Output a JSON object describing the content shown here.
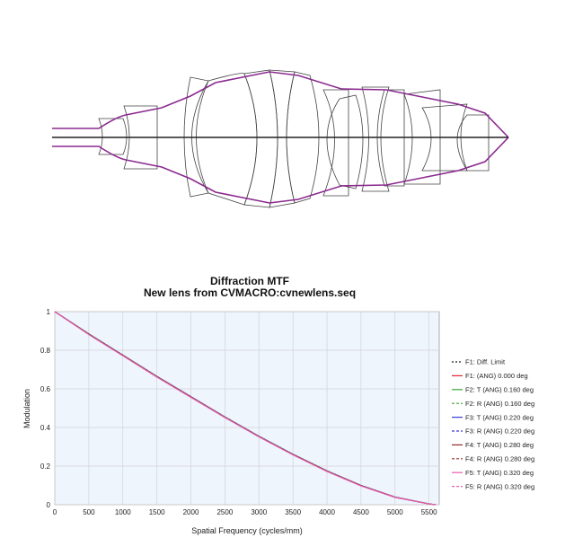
{
  "lens_diagram": {
    "element_stroke": "#444444",
    "ray_color": "#8b2a8f",
    "axis_color": "#222222"
  },
  "chart_data": {
    "type": "line",
    "title": "Diffraction MTF",
    "subtitle": "New lens from CVMACRO:cvnewlens.seq",
    "xlabel": "Spatial Frequency (cycles/mm)",
    "ylabel": "Modulation",
    "xlim": [
      0,
      5650
    ],
    "ylim": [
      0,
      1
    ],
    "xticks": [
      0,
      500,
      1000,
      1500,
      2000,
      2500,
      3000,
      3500,
      4000,
      4500,
      5000,
      5500
    ],
    "yticks": [
      0,
      0.2,
      0.4,
      0.6,
      0.8,
      1
    ],
    "grid": true,
    "legend_position": "right",
    "plot_background": "#eef5fd",
    "x": [
      0,
      500,
      1000,
      1500,
      2000,
      2500,
      3000,
      3500,
      4000,
      4500,
      5000,
      5500,
      5600
    ],
    "series": [
      {
        "name": "F1: Diff. Limit",
        "color": "#222222",
        "dash": "2,2",
        "values": [
          1.0,
          0.885,
          0.775,
          0.665,
          0.56,
          0.455,
          0.355,
          0.262,
          0.176,
          0.1,
          0.04,
          0.004,
          0.0
        ]
      },
      {
        "name": "F1: (ANG) 0.000 deg",
        "color": "#e0262d",
        "dash": "",
        "values": [
          1.0,
          0.885,
          0.775,
          0.665,
          0.56,
          0.455,
          0.355,
          0.262,
          0.176,
          0.1,
          0.04,
          0.004,
          0.0
        ]
      },
      {
        "name": "F2: T (ANG) 0.160 deg",
        "color": "#3aa63a",
        "dash": "",
        "values": [
          1.0,
          0.884,
          0.774,
          0.664,
          0.559,
          0.454,
          0.354,
          0.261,
          0.175,
          0.099,
          0.039,
          0.004,
          0.0
        ]
      },
      {
        "name": "F2: R (ANG) 0.160 deg",
        "color": "#3aa63a",
        "dash": "3,2",
        "values": [
          1.0,
          0.884,
          0.774,
          0.664,
          0.559,
          0.454,
          0.354,
          0.261,
          0.175,
          0.099,
          0.039,
          0.004,
          0.0
        ]
      },
      {
        "name": "F3: T (ANG) 0.220 deg",
        "color": "#3b3bd6",
        "dash": "",
        "values": [
          1.0,
          0.883,
          0.773,
          0.663,
          0.558,
          0.453,
          0.353,
          0.26,
          0.174,
          0.099,
          0.039,
          0.004,
          0.0
        ]
      },
      {
        "name": "F3: R (ANG) 0.220 deg",
        "color": "#3b3bd6",
        "dash": "3,2",
        "values": [
          1.0,
          0.883,
          0.773,
          0.663,
          0.558,
          0.453,
          0.353,
          0.26,
          0.174,
          0.099,
          0.039,
          0.004,
          0.0
        ]
      },
      {
        "name": "F4: T (ANG) 0.280 deg",
        "color": "#8b2d2d",
        "dash": "",
        "values": [
          1.0,
          0.882,
          0.772,
          0.662,
          0.557,
          0.452,
          0.352,
          0.259,
          0.173,
          0.098,
          0.038,
          0.004,
          0.0
        ]
      },
      {
        "name": "F4: R (ANG) 0.280 deg",
        "color": "#8b2d2d",
        "dash": "3,2",
        "values": [
          1.0,
          0.882,
          0.772,
          0.662,
          0.557,
          0.452,
          0.352,
          0.259,
          0.173,
          0.098,
          0.038,
          0.004,
          0.0
        ]
      },
      {
        "name": "F5: T (ANG) 0.320 deg",
        "color": "#e85fb0",
        "dash": "",
        "values": [
          1.0,
          0.881,
          0.771,
          0.661,
          0.556,
          0.451,
          0.351,
          0.258,
          0.172,
          0.097,
          0.038,
          0.004,
          0.0
        ]
      },
      {
        "name": "F5: R (ANG) 0.320 deg",
        "color": "#e85fb0",
        "dash": "3,2",
        "values": [
          1.0,
          0.881,
          0.771,
          0.661,
          0.556,
          0.451,
          0.351,
          0.258,
          0.172,
          0.097,
          0.038,
          0.004,
          0.0
        ]
      }
    ]
  }
}
